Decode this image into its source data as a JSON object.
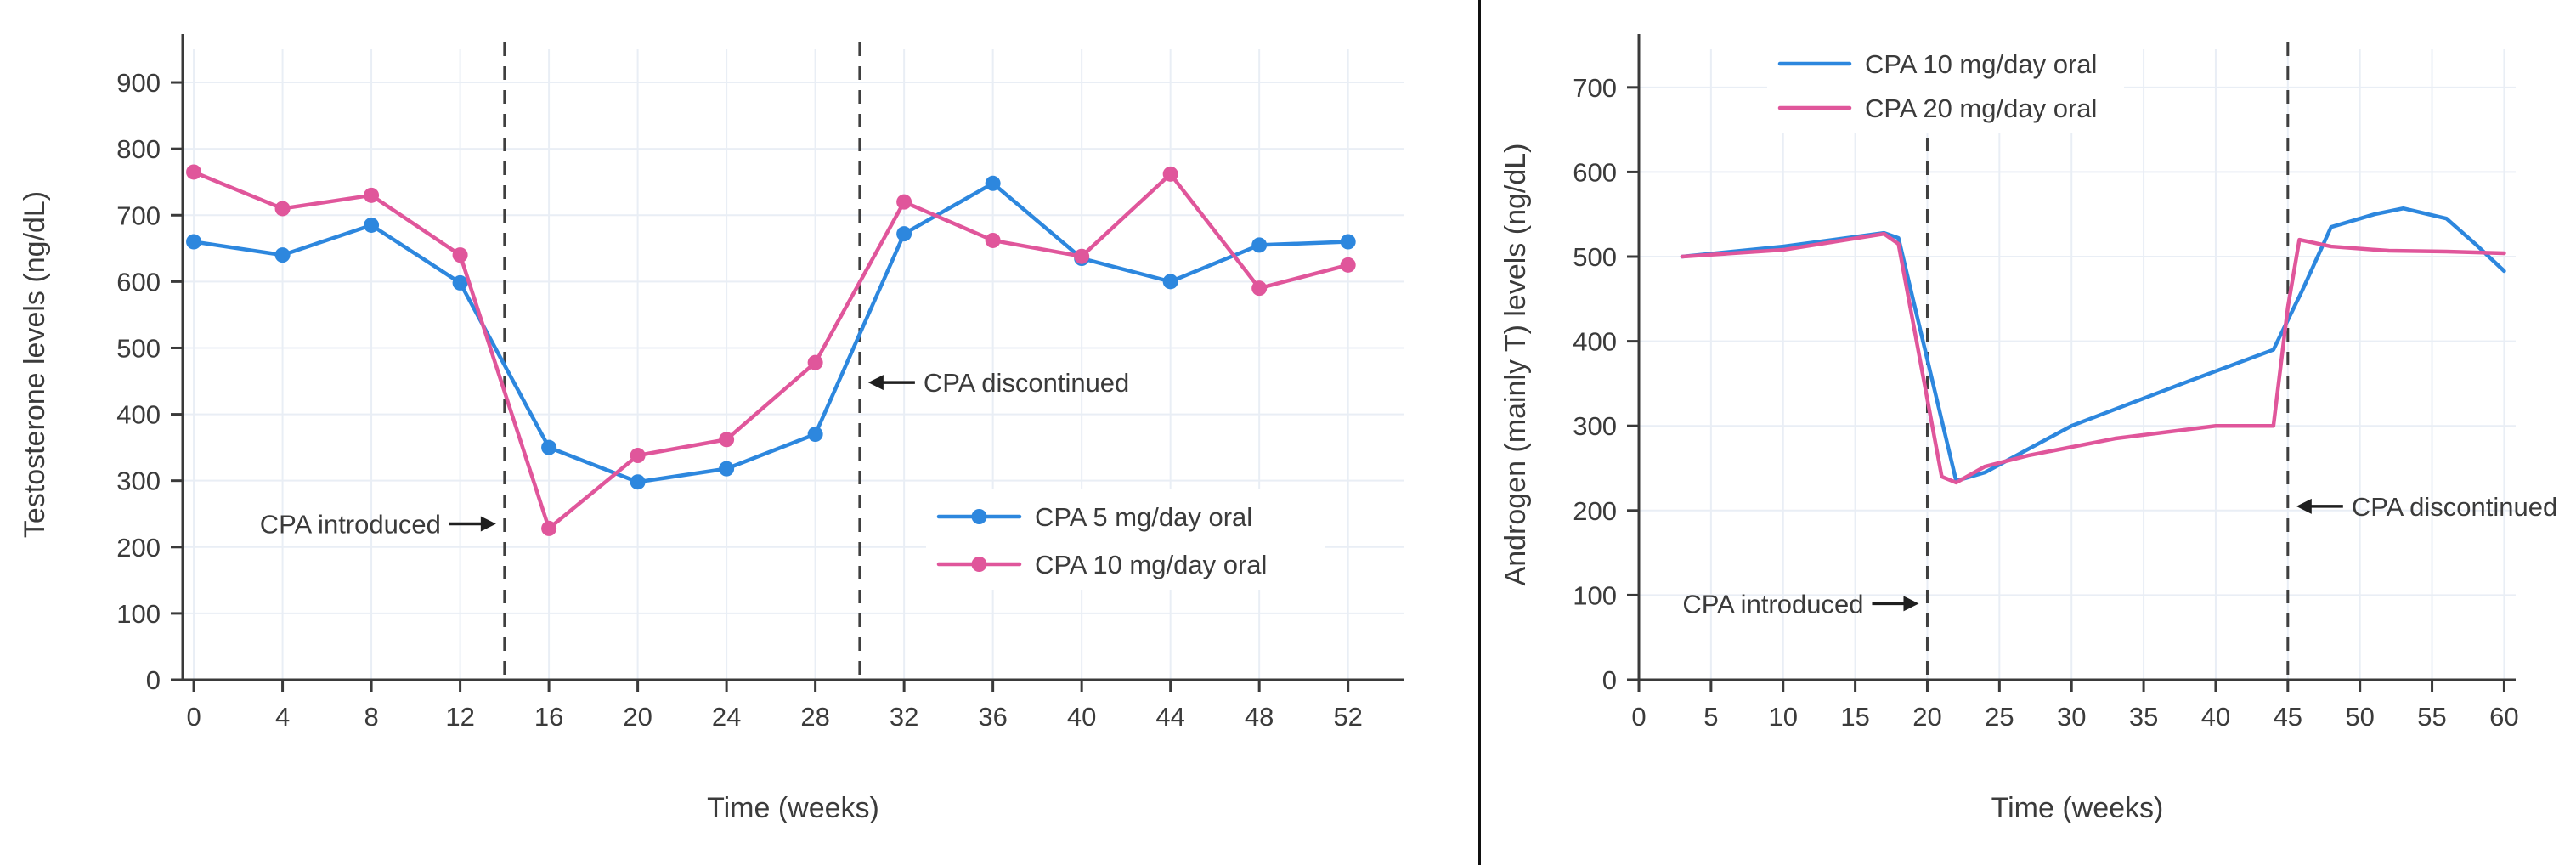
{
  "figure": {
    "background": "#ffffff",
    "divider_color": "#111111",
    "text_color": "#3b3b3b",
    "grid_color": "#e9eef5",
    "axis_color": "#3a3a3a",
    "dashed_line_color": "#3f3f3f",
    "arrow_color": "#1f1f1f"
  },
  "chart_data": [
    {
      "type": "line",
      "title": "",
      "xlabel": "Time (weeks)",
      "ylabel": "Testosterone levels (ng/dL)",
      "xlim": [
        -0.5,
        54.5
      ],
      "ylim": [
        0,
        950
      ],
      "xticks": [
        0,
        4,
        8,
        12,
        16,
        20,
        24,
        28,
        32,
        36,
        40,
        44,
        48,
        52
      ],
      "yticks": [
        0,
        100,
        200,
        300,
        400,
        500,
        600,
        700,
        800,
        900
      ],
      "grid": true,
      "legend_position": "lower right inside",
      "series": [
        {
          "name": "CPA 5 mg/day oral",
          "color": "#2d87de",
          "markers": true,
          "x": [
            0,
            4,
            8,
            12,
            16,
            20,
            24,
            28,
            32,
            36,
            40,
            44,
            48,
            52
          ],
          "y": [
            660,
            640,
            685,
            598,
            350,
            298,
            318,
            370,
            672,
            748,
            635,
            600,
            655,
            660
          ]
        },
        {
          "name": "CPA 10 mg/day oral",
          "color": "#e0569b",
          "markers": true,
          "x": [
            0,
            4,
            8,
            12,
            16,
            20,
            24,
            28,
            32,
            36,
            40,
            44,
            48,
            52
          ],
          "y": [
            765,
            710,
            730,
            640,
            228,
            338,
            362,
            478,
            720,
            662,
            638,
            762,
            590,
            625
          ]
        }
      ],
      "vlines": [
        {
          "x": 14,
          "style": "dashed"
        },
        {
          "x": 30,
          "style": "dashed"
        }
      ],
      "annotations": [
        {
          "text": "CPA introduced",
          "x": 14,
          "y": 235,
          "dir": "right"
        },
        {
          "text": "CPA discontinued",
          "x": 30,
          "y": 448,
          "dir": "left"
        }
      ]
    },
    {
      "type": "line",
      "title": "",
      "xlabel": "Time (weeks)",
      "ylabel": "Androgen (mainly T) levels (ng/dL)",
      "xlim": [
        0,
        60.8
      ],
      "ylim": [
        0,
        745
      ],
      "xticks": [
        0,
        5,
        10,
        15,
        20,
        25,
        30,
        35,
        40,
        45,
        50,
        55,
        60
      ],
      "yticks": [
        0,
        100,
        200,
        300,
        400,
        500,
        600,
        700
      ],
      "grid": true,
      "legend_position": "upper left inside",
      "series": [
        {
          "name": "CPA 10 mg/day oral",
          "color": "#2d87de",
          "markers": false,
          "x": [
            3,
            10,
            17,
            18,
            22,
            24,
            30,
            38,
            44,
            46,
            48,
            51,
            53,
            56,
            58,
            60
          ],
          "y": [
            500,
            512,
            528,
            522,
            235,
            245,
            300,
            352,
            390,
            460,
            535,
            550,
            557,
            545,
            515,
            483
          ]
        },
        {
          "name": "CPA 20 mg/day oral",
          "color": "#e0569b",
          "markers": false,
          "x": [
            3,
            10,
            17,
            18,
            21,
            22,
            24,
            27,
            33,
            40,
            44,
            45,
            45.8,
            48,
            52,
            56,
            60
          ],
          "y": [
            500,
            508,
            527,
            515,
            240,
            233,
            252,
            265,
            285,
            300,
            300,
            440,
            520,
            512,
            507,
            506,
            504
          ]
        }
      ],
      "vlines": [
        {
          "x": 20,
          "style": "dashed"
        },
        {
          "x": 45,
          "style": "dashed"
        }
      ],
      "annotations": [
        {
          "text": "CPA introduced",
          "x": 20,
          "y": 90,
          "dir": "right"
        },
        {
          "text": "CPA discontinued",
          "x": 45,
          "y": 205,
          "dir": "left"
        }
      ]
    }
  ]
}
